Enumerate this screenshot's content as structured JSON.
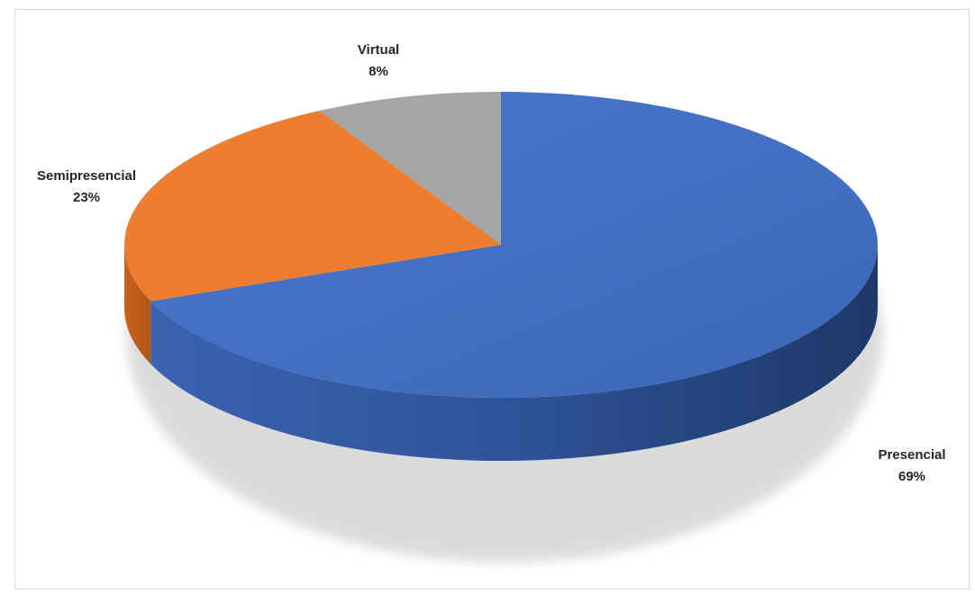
{
  "chart_data": {
    "type": "pie",
    "style": "3d",
    "slices": [
      {
        "name": "Presencial",
        "value": 69,
        "label": "69%",
        "color": "#4472c4"
      },
      {
        "name": "Semipresencial",
        "value": 23,
        "label": "23%",
        "color": "#ed7d31"
      },
      {
        "name": "Virtual",
        "value": 8,
        "label": "8%",
        "color": "#a5a5a5"
      }
    ],
    "legend": "none",
    "data_labels": "outside"
  }
}
